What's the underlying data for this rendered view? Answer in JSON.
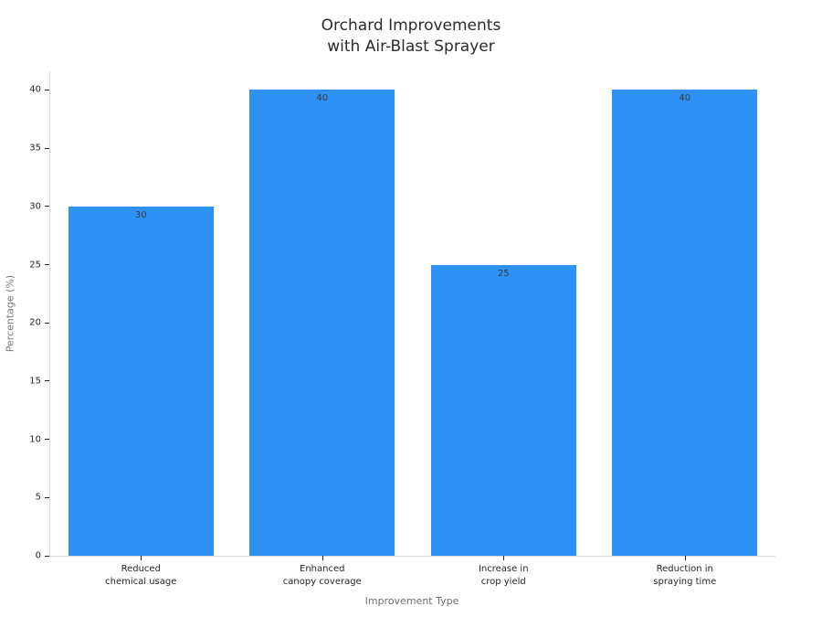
{
  "chart_data": {
    "type": "bar",
    "title": "Orchard Improvements\nwith Air-Blast Sprayer",
    "xlabel": "Improvement Type",
    "ylabel": "Percentage (%)",
    "categories": [
      "Reduced\nchemical usage",
      "Enhanced\ncanopy coverage",
      "Increase in\ncrop yield",
      "Reduction in\nspraying time"
    ],
    "values": [
      30,
      40,
      25,
      40
    ],
    "yticks": [
      0,
      5,
      10,
      15,
      20,
      25,
      30,
      35,
      40
    ],
    "ylim": [
      0,
      41.6
    ],
    "bar_color": "#2D91F6",
    "axis_line_color": "#d9d9d9",
    "grid": false,
    "legend": null,
    "bar_labels_shown": true
  }
}
